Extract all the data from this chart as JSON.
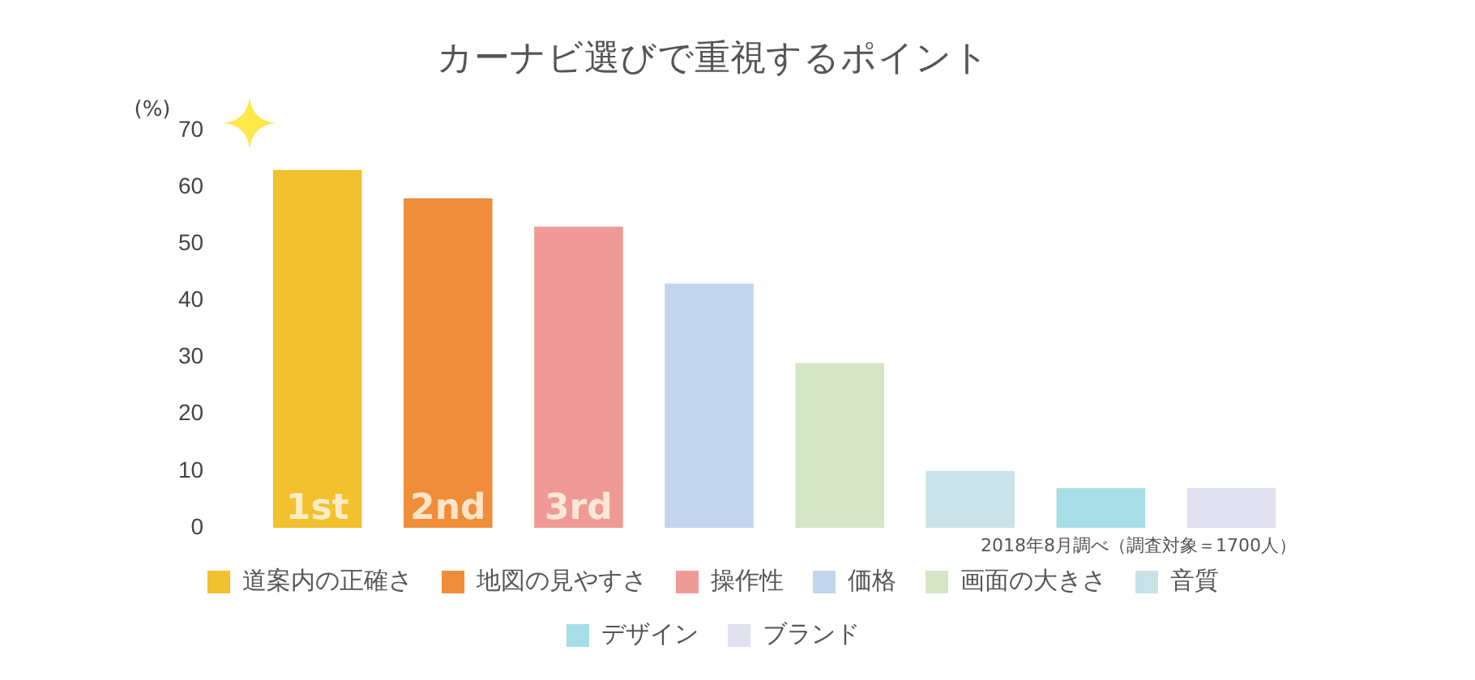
{
  "chart_data": {
    "type": "bar",
    "title": "カーナビ選びで重視するポイント",
    "ylabel": "(%)",
    "categories": [
      null,
      null,
      null,
      null,
      null,
      null,
      null,
      null
    ],
    "series": [
      {
        "name": "道案内の正確さ",
        "color": "#f2c12e",
        "values": [
          63,
          null,
          null,
          null,
          null,
          null,
          null,
          null
        ]
      },
      {
        "name": "地図の見やすさ",
        "color": "#f08d3a",
        "values": [
          null,
          58,
          null,
          null,
          null,
          null,
          null,
          null
        ]
      },
      {
        "name": "操作性",
        "color": "#f09a98",
        "values": [
          null,
          null,
          53,
          null,
          null,
          null,
          null,
          null
        ]
      },
      {
        "name": "価格",
        "color": "#c3d4ee",
        "values": [
          null,
          null,
          null,
          43,
          null,
          null,
          null,
          null
        ]
      },
      {
        "name": "画面の大きさ",
        "color": "#d5e6c6",
        "values": [
          null,
          null,
          null,
          null,
          29,
          null,
          null,
          null
        ]
      },
      {
        "name": "音質",
        "color": "#c8e2e8",
        "values": [
          null,
          null,
          null,
          null,
          null,
          10,
          null,
          null
        ]
      },
      {
        "name": "デザイン",
        "color": "#a6dde6",
        "values": [
          null,
          null,
          null,
          null,
          null,
          null,
          7,
          null
        ]
      },
      {
        "name": "ブランド",
        "color": "#e1e1f0",
        "values": [
          null,
          null,
          null,
          null,
          null,
          null,
          null,
          7
        ]
      }
    ],
    "ylim": [
      0,
      70
    ],
    "yticks": [
      0,
      10,
      20,
      30,
      40,
      50,
      60,
      70
    ],
    "grid": false,
    "legend": "bottom",
    "stacked": true,
    "annotations": [
      "1st",
      "2nd",
      "3rd",
      "2018年8月調べ（調査対象＝1700人）"
    ]
  }
}
